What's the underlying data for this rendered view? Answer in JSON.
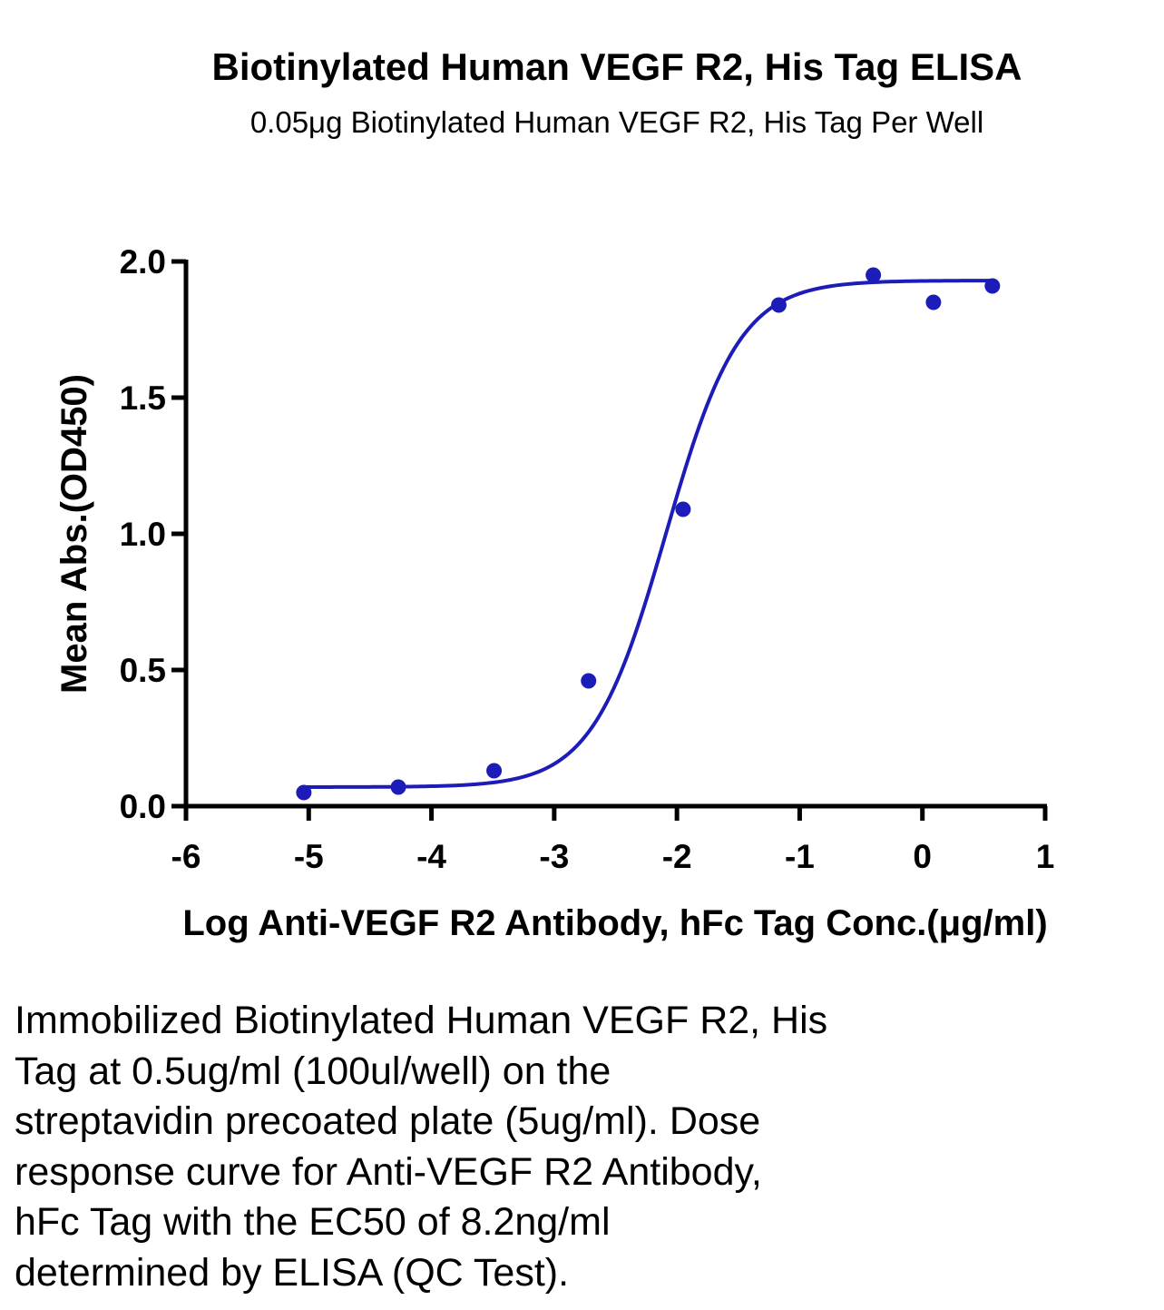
{
  "title": "Biotinylated Human VEGF R2, His Tag ELISA",
  "subtitle": "0.05μg Biotinylated Human VEGF R2, His Tag Per Well",
  "caption_lines": [
    "Immobilized Biotinylated Human VEGF R2, His",
    "Tag at 0.5ug/ml (100ul/well) on the",
    "streptavidin precoated plate (5ug/ml). Dose",
    "response curve for Anti-VEGF R2 Antibody,",
    "hFc Tag with the EC50 of 8.2ng/ml",
    "determined by ELISA (QC Test)."
  ],
  "colors": {
    "series": "#1c1cb8",
    "axis": "#000000"
  },
  "chart_data": {
    "type": "scatter",
    "title": "Biotinylated Human VEGF R2, His Tag ELISA",
    "subtitle": "0.05μg Biotinylated Human VEGF R2, His Tag Per Well",
    "xlabel": "Log Anti-VEGF R2 Antibody, hFc Tag Conc.(μg/ml)",
    "ylabel": "Mean Abs.(OD450)",
    "xlim": [
      -6,
      1
    ],
    "ylim": [
      0,
      2
    ],
    "xticks": [
      -6,
      -5,
      -4,
      -3,
      -2,
      -1,
      0,
      1
    ],
    "yticks": [
      0,
      0.5,
      1,
      1.5,
      2
    ],
    "xtick_labels": [
      "-6",
      "-5",
      "-4",
      "-3",
      "-2",
      "-1",
      "0",
      "1"
    ],
    "ytick_labels": [
      "0.0",
      "0.5",
      "1.0",
      "1.5",
      "2.0"
    ],
    "grid": false,
    "legend": "none",
    "series": [
      {
        "points": [
          {
            "x": -5.04,
            "y": 0.05
          },
          {
            "x": -4.27,
            "y": 0.07
          },
          {
            "x": -3.49,
            "y": 0.13
          },
          {
            "x": -2.72,
            "y": 0.46
          },
          {
            "x": -1.95,
            "y": 1.09
          },
          {
            "x": -1.17,
            "y": 1.84
          },
          {
            "x": -0.4,
            "y": 1.95
          },
          {
            "x": 0.09,
            "y": 1.85
          },
          {
            "x": 0.57,
            "y": 1.91
          }
        ],
        "fit": {
          "model": "4PL",
          "bottom": 0.07,
          "top": 1.93,
          "log_ec50": -2.09,
          "hill_slope": 1.45,
          "x_range": [
            -5.04,
            0.57
          ]
        }
      }
    ]
  }
}
